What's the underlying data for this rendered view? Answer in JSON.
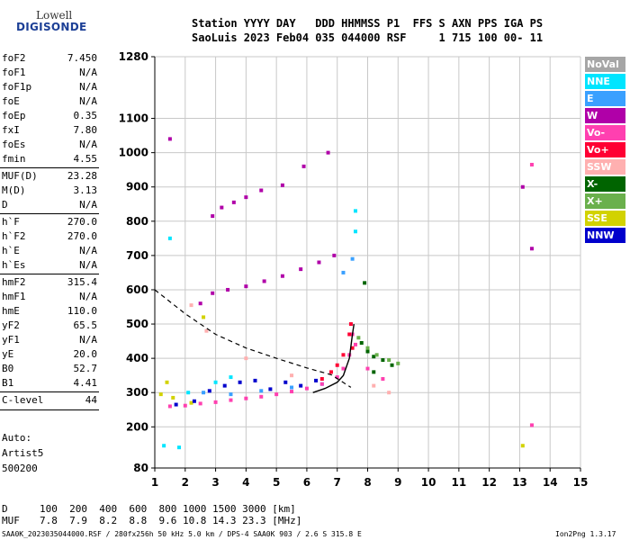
{
  "logo": {
    "top": "Lowell",
    "bottom": "DIGISONDE"
  },
  "header": {
    "line1": "Station YYYY DAY   DDD HHMMSS P1  FFS S AXN PPS IGA PS",
    "line2": "SaoLuis 2023 Feb04 035 044000 RSF     1 715 100 00- 11"
  },
  "params": [
    {
      "k": "foF2",
      "v": "7.450"
    },
    {
      "k": "foF1",
      "v": "N/A"
    },
    {
      "k": "foF1p",
      "v": "N/A"
    },
    {
      "k": "foE",
      "v": "N/A"
    },
    {
      "k": "foEp",
      "v": "0.35"
    },
    {
      "k": "fxI",
      "v": "7.80"
    },
    {
      "k": "foEs",
      "v": "N/A"
    },
    {
      "k": "fmin",
      "v": "4.55"
    },
    {
      "k": "MUF(D)",
      "v": "23.28",
      "sep": true
    },
    {
      "k": "M(D)",
      "v": "3.13"
    },
    {
      "k": "D",
      "v": "N/A"
    },
    {
      "k": "h`F",
      "v": "270.0",
      "sep": true
    },
    {
      "k": "h`F2",
      "v": "270.0"
    },
    {
      "k": "h`E",
      "v": "N/A"
    },
    {
      "k": "h`Es",
      "v": "N/A"
    },
    {
      "k": "hmF2",
      "v": "315.4",
      "sep": true
    },
    {
      "k": "hmF1",
      "v": "N/A"
    },
    {
      "k": "hmE",
      "v": "110.0"
    },
    {
      "k": "yF2",
      "v": "65.5"
    },
    {
      "k": "yF1",
      "v": "N/A"
    },
    {
      "k": "yE",
      "v": "20.0"
    },
    {
      "k": "B0",
      "v": "52.7"
    },
    {
      "k": "B1",
      "v": "4.41"
    },
    {
      "k": "C-level",
      "v": "44",
      "sep": true
    }
  ],
  "artist": {
    "line1": "Auto:",
    "line2": "Artist5",
    "line3": "500200"
  },
  "legend": [
    {
      "label": "NoVal",
      "color": "#a6a6a6"
    },
    {
      "label": "NNE",
      "color": "#00e5ff"
    },
    {
      "label": "E",
      "color": "#3aa0ff"
    },
    {
      "label": "W",
      "color": "#b000a8"
    },
    {
      "label": "Vo-",
      "color": "#ff40b0"
    },
    {
      "label": "Vo+",
      "color": "#ff0033"
    },
    {
      "label": "SSW",
      "color": "#ffb0b0"
    },
    {
      "label": "X-",
      "color": "#006400"
    },
    {
      "label": "X+",
      "color": "#6ab04c"
    },
    {
      "label": "SSE",
      "color": "#d2d200"
    },
    {
      "label": "NNW",
      "color": "#0000cc"
    }
  ],
  "footer": {
    "d_label": "D",
    "d_values": "100  200  400  600  800 1000 1500 3000 [km]",
    "muf_label": "MUF",
    "muf_values": "7.8  7.9  8.2  8.8  9.6 10.8 14.3 23.3 [MHz]",
    "info": "SAA0K_2023035044000.RSF / 280fx256h 50 kHz 5.0 km / DPS-4 SAA0K 903 / 2.6 S 315.8 E",
    "version": "Ion2Png 1.3.17"
  },
  "chart_data": {
    "type": "scatter",
    "xlim": [
      1,
      15
    ],
    "ylim": [
      80,
      1280
    ],
    "x_ticks": [
      1,
      2,
      3,
      4,
      5,
      6,
      7,
      8,
      9,
      10,
      11,
      12,
      13,
      14,
      15
    ],
    "y_ticks": [
      80,
      200,
      300,
      400,
      500,
      600,
      700,
      800,
      900,
      1000,
      1100,
      1280
    ],
    "grid": true,
    "title": "",
    "xlabel": "",
    "ylabel": "",
    "series": [
      {
        "name": "W",
        "points": [
          [
            1.5,
            1040
          ],
          [
            2.9,
            815
          ],
          [
            3.2,
            840
          ],
          [
            3.6,
            855
          ],
          [
            4.0,
            870
          ],
          [
            4.5,
            890
          ],
          [
            5.2,
            905
          ],
          [
            5.9,
            960
          ],
          [
            6.7,
            1000
          ],
          [
            2.5,
            560
          ],
          [
            2.9,
            590
          ],
          [
            3.4,
            600
          ],
          [
            4.0,
            610
          ],
          [
            4.6,
            625
          ],
          [
            5.2,
            640
          ],
          [
            5.8,
            660
          ],
          [
            6.4,
            680
          ],
          [
            6.9,
            700
          ],
          [
            13.1,
            900
          ],
          [
            13.4,
            720
          ]
        ]
      },
      {
        "name": "NNE",
        "points": [
          [
            1.3,
            145
          ],
          [
            1.8,
            140
          ],
          [
            2.1,
            300
          ],
          [
            3.0,
            330
          ],
          [
            3.5,
            345
          ],
          [
            7.6,
            770
          ],
          [
            7.6,
            830
          ],
          [
            1.5,
            750
          ]
        ]
      },
      {
        "name": "E",
        "points": [
          [
            2.6,
            300
          ],
          [
            3.5,
            295
          ],
          [
            4.5,
            305
          ],
          [
            5.5,
            315
          ],
          [
            6.5,
            325
          ],
          [
            7.2,
            650
          ],
          [
            7.5,
            690
          ]
        ]
      },
      {
        "name": "Vo-",
        "points": [
          [
            1.5,
            260
          ],
          [
            2.0,
            262
          ],
          [
            2.5,
            268
          ],
          [
            3.0,
            272
          ],
          [
            3.5,
            278
          ],
          [
            4.0,
            283
          ],
          [
            4.5,
            288
          ],
          [
            5.0,
            295
          ],
          [
            5.5,
            303
          ],
          [
            6.0,
            312
          ],
          [
            6.5,
            325
          ],
          [
            7.0,
            345
          ],
          [
            7.2,
            370
          ],
          [
            7.4,
            410
          ],
          [
            7.5,
            470
          ],
          [
            7.6,
            440
          ],
          [
            8.0,
            370
          ],
          [
            8.5,
            340
          ],
          [
            13.4,
            965
          ],
          [
            13.4,
            205
          ]
        ]
      },
      {
        "name": "Vo+",
        "points": [
          [
            6.5,
            340
          ],
          [
            6.8,
            360
          ],
          [
            7.0,
            380
          ],
          [
            7.2,
            410
          ],
          [
            7.4,
            470
          ],
          [
            7.45,
            500
          ],
          [
            7.5,
            430
          ]
        ]
      },
      {
        "name": "SSW",
        "points": [
          [
            2.2,
            555
          ],
          [
            2.7,
            480
          ],
          [
            4.0,
            400
          ],
          [
            5.5,
            350
          ],
          [
            8.2,
            320
          ],
          [
            8.7,
            300
          ]
        ]
      },
      {
        "name": "X-",
        "points": [
          [
            7.8,
            445
          ],
          [
            8.0,
            420
          ],
          [
            8.2,
            405
          ],
          [
            8.5,
            395
          ],
          [
            8.8,
            380
          ],
          [
            7.9,
            620
          ],
          [
            8.2,
            360
          ]
        ]
      },
      {
        "name": "X+",
        "points": [
          [
            8.0,
            430
          ],
          [
            8.3,
            410
          ],
          [
            8.7,
            395
          ],
          [
            9.0,
            385
          ],
          [
            7.7,
            460
          ]
        ]
      },
      {
        "name": "SSE",
        "points": [
          [
            1.2,
            295
          ],
          [
            1.6,
            285
          ],
          [
            2.2,
            270
          ],
          [
            2.6,
            520
          ],
          [
            13.1,
            145
          ],
          [
            1.4,
            330
          ]
        ]
      },
      {
        "name": "NNW",
        "points": [
          [
            1.7,
            265
          ],
          [
            2.3,
            275
          ],
          [
            2.8,
            305
          ],
          [
            3.3,
            320
          ],
          [
            3.8,
            330
          ],
          [
            4.3,
            335
          ],
          [
            4.8,
            310
          ],
          [
            5.3,
            330
          ],
          [
            5.8,
            320
          ],
          [
            6.3,
            335
          ]
        ]
      }
    ],
    "ne_profile": [
      [
        1.0,
        600
      ],
      [
        2.0,
        530
      ],
      [
        3.0,
        470
      ],
      [
        4.0,
        430
      ],
      [
        5.0,
        400
      ],
      [
        6.0,
        372
      ],
      [
        6.8,
        352
      ],
      [
        7.45,
        315.4
      ]
    ],
    "trace_curve": [
      [
        6.2,
        300
      ],
      [
        6.6,
        312
      ],
      [
        7.0,
        330
      ],
      [
        7.2,
        350
      ],
      [
        7.4,
        400
      ],
      [
        7.5,
        470
      ],
      [
        7.55,
        500
      ]
    ]
  }
}
